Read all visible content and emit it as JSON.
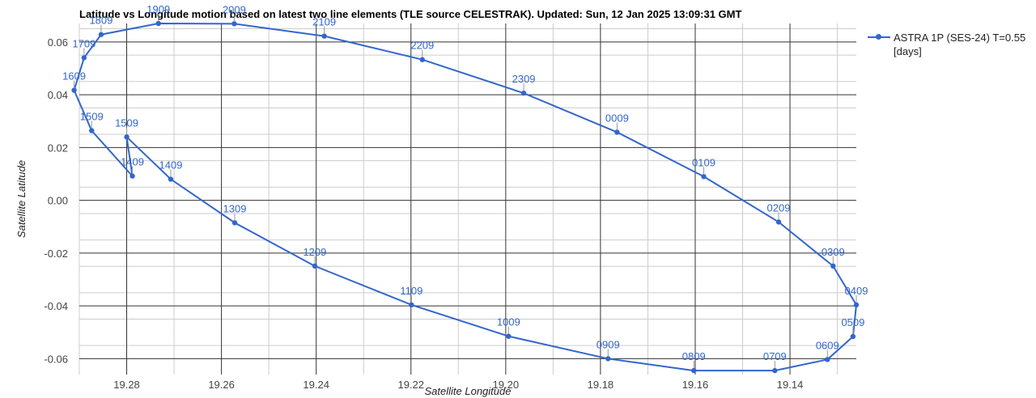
{
  "chart_data": {
    "type": "scatter",
    "title": "Latitude vs Longitude motion based on latest two line elements (TLE source CELESTRAK). Updated: Sun, 12 Jan 2025 13:09:31 GMT",
    "xlabel": "Satellite Longitude",
    "ylabel": "Satellite Latitude",
    "x_reversed": true,
    "xlim": [
      19.29,
      19.126
    ],
    "ylim": [
      -0.066,
      0.067
    ],
    "x_ticks": [
      "19.28",
      "19.26",
      "19.24",
      "19.22",
      "19.20",
      "19.18",
      "19.16",
      "19.14"
    ],
    "x_tick_values": [
      19.28,
      19.26,
      19.24,
      19.22,
      19.2,
      19.18,
      19.16,
      19.14
    ],
    "y_ticks": [
      "0.06",
      "0.04",
      "0.02",
      "0.00",
      "-0.02",
      "-0.04",
      "-0.06"
    ],
    "y_tick_values": [
      0.06,
      0.04,
      0.02,
      0.0,
      -0.02,
      -0.04,
      -0.06
    ],
    "grid": true,
    "legend_position": "right",
    "series": [
      {
        "name": "ASTRA 1P (SES-24) T=0.55 [days]",
        "color": "#3366cc",
        "points": [
          {
            "label": "1509",
            "x": 19.28,
            "y": 0.024
          },
          {
            "label": "1409",
            "x": 19.2788,
            "y": 0.0092
          },
          {
            "label": "1509",
            "x": 19.2874,
            "y": 0.0264
          },
          {
            "label": "1609",
            "x": 19.2911,
            "y": 0.0417
          },
          {
            "label": "1709",
            "x": 19.289,
            "y": 0.054
          },
          {
            "label": "1809",
            "x": 19.2854,
            "y": 0.0628
          },
          {
            "label": "1909",
            "x": 19.2733,
            "y": 0.067
          },
          {
            "label": "2009",
            "x": 19.2573,
            "y": 0.0669
          },
          {
            "label": "2109",
            "x": 19.2383,
            "y": 0.0622
          },
          {
            "label": "2209",
            "x": 19.2176,
            "y": 0.0533
          },
          {
            "label": "2309",
            "x": 19.1962,
            "y": 0.0406
          },
          {
            "label": "0009",
            "x": 19.1765,
            "y": 0.0258
          },
          {
            "label": "0109",
            "x": 19.1582,
            "y": 0.009
          },
          {
            "label": "0209",
            "x": 19.1424,
            "y": -0.0082
          },
          {
            "label": "0309",
            "x": 19.1309,
            "y": -0.0249
          },
          {
            "label": "0409",
            "x": 19.126,
            "y": -0.0396
          },
          {
            "label": "0509",
            "x": 19.1267,
            "y": -0.0516
          },
          {
            "label": "0609",
            "x": 19.1321,
            "y": -0.0603
          },
          {
            "label": "0709",
            "x": 19.1432,
            "y": -0.0645
          },
          {
            "label": "0809",
            "x": 19.1603,
            "y": -0.0645
          },
          {
            "label": "0909",
            "x": 19.1784,
            "y": -0.06
          },
          {
            "label": "1009",
            "x": 19.1994,
            "y": -0.0515
          },
          {
            "label": "1109",
            "x": 19.2199,
            "y": -0.0396
          },
          {
            "label": "1209",
            "x": 19.2403,
            "y": -0.0249
          },
          {
            "label": "1309",
            "x": 19.2572,
            "y": -0.0085
          },
          {
            "label": "1409",
            "x": 19.2707,
            "y": 0.008
          },
          {
            "label": "1509",
            "x": 19.28,
            "y": 0.024
          }
        ]
      }
    ]
  }
}
